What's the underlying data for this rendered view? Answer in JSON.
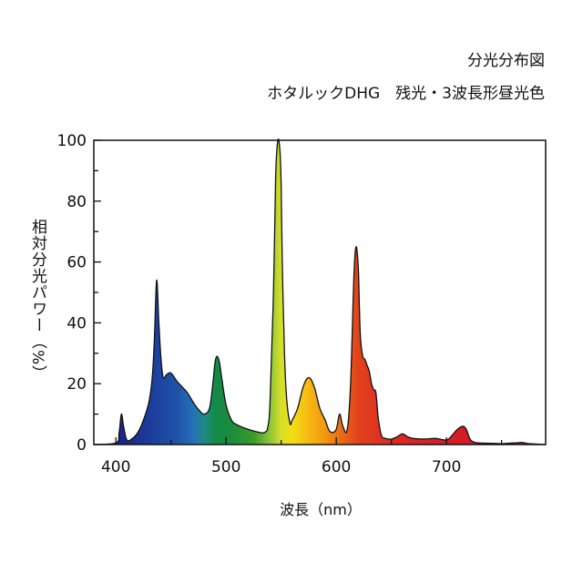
{
  "header": {
    "title": "分光分布図",
    "subtitle": "ホタルックDHG　残光・3波長形昼光色"
  },
  "chart_data": {
    "type": "area",
    "xlabel": "波長（nm）",
    "ylabel": "相対分光パワー（%）",
    "xlim": [
      380,
      790
    ],
    "ylim": [
      0,
      100
    ],
    "x_ticks": [
      400,
      500,
      600,
      700
    ],
    "y_ticks": [
      0,
      20,
      40,
      60,
      80,
      100
    ],
    "grid": false,
    "legend": "none",
    "series": [
      {
        "x": [
          380,
          400,
          403,
          405,
          407,
          410,
          415,
          420,
          425,
          430,
          433,
          435,
          437,
          439,
          441,
          443,
          446,
          450,
          455,
          460,
          465,
          470,
          475,
          480,
          485,
          488,
          490,
          492,
          494,
          496,
          500,
          505,
          510,
          520,
          530,
          535,
          538,
          540,
          543,
          545,
          547,
          549,
          550,
          551,
          553,
          555,
          558,
          560,
          565,
          570,
          575,
          580,
          585,
          590,
          593,
          596,
          600,
          603,
          606,
          610,
          613,
          616,
          618,
          620,
          621,
          622,
          624,
          626,
          628,
          630,
          632,
          634,
          636,
          638,
          641,
          645,
          650,
          655,
          660,
          665,
          670,
          680,
          690,
          700,
          705,
          710,
          715,
          718,
          720,
          722,
          725,
          730,
          740,
          750,
          760,
          765,
          768,
          770,
          772,
          775,
          790
        ],
        "y": [
          0,
          0.5,
          4,
          10,
          6,
          1.5,
          2,
          4,
          8,
          14,
          22,
          35,
          54,
          40,
          28,
          22,
          23,
          23.5,
          21,
          19,
          17,
          14,
          11.5,
          10,
          12,
          20,
          27,
          29,
          27,
          22,
          13,
          8,
          6.5,
          5,
          4,
          4,
          6,
          15,
          50,
          88,
          100,
          96,
          85,
          60,
          30,
          15,
          7,
          8,
          12,
          19,
          22,
          19,
          12,
          8,
          5,
          4,
          5,
          10,
          6,
          5,
          20,
          55,
          65,
          58,
          45,
          35,
          29,
          28,
          26,
          24,
          20,
          18,
          17,
          9,
          3,
          2,
          1.8,
          2.5,
          3.5,
          2.5,
          2,
          1.8,
          2,
          1.5,
          3,
          5,
          6,
          5,
          3,
          1.5,
          0.8,
          0.5,
          0.4,
          0.3,
          0.5,
          0.6,
          0.7,
          0.6,
          0.5,
          0.3,
          0
        ]
      }
    ]
  }
}
